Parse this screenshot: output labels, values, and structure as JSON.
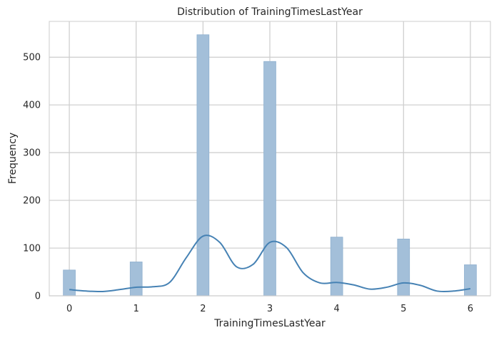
{
  "chart_data": {
    "type": "bar",
    "title": "Distribution of TrainingTimesLastYear",
    "xlabel": "TrainingTimesLastYear",
    "ylabel": "Frequency",
    "xlim": [
      -0.3,
      6.3
    ],
    "ylim": [
      0,
      575
    ],
    "x_ticks": [
      0,
      1,
      2,
      3,
      4,
      5,
      6
    ],
    "y_ticks": [
      0,
      100,
      200,
      300,
      400,
      500
    ],
    "grid": true,
    "bar_width": 0.18,
    "bars": [
      {
        "x": 0,
        "value": 54
      },
      {
        "x": 1,
        "value": 71
      },
      {
        "x": 2,
        "value": 547
      },
      {
        "x": 3,
        "value": 491
      },
      {
        "x": 4,
        "value": 123
      },
      {
        "x": 5,
        "value": 119
      },
      {
        "x": 6,
        "value": 65
      }
    ],
    "kde": {
      "x": [
        0,
        0.25,
        0.5,
        0.75,
        1,
        1.25,
        1.5,
        1.75,
        2,
        2.25,
        2.5,
        2.75,
        3,
        3.25,
        3.5,
        3.75,
        4,
        4.25,
        4.5,
        4.75,
        5,
        5.25,
        5.5,
        5.75,
        6
      ],
      "y": [
        13,
        10,
        9,
        13,
        18,
        19,
        28,
        80,
        125,
        112,
        61,
        66,
        112,
        101,
        48,
        27,
        28,
        23,
        14,
        18,
        27,
        22,
        10,
        10,
        15
      ]
    },
    "colors": {
      "bar_fill": "#a3bfd9",
      "bar_stroke": "#8fb0cf",
      "kde_line": "#4682b4",
      "grid": "#cccccc",
      "axes": "#cccccc"
    }
  }
}
